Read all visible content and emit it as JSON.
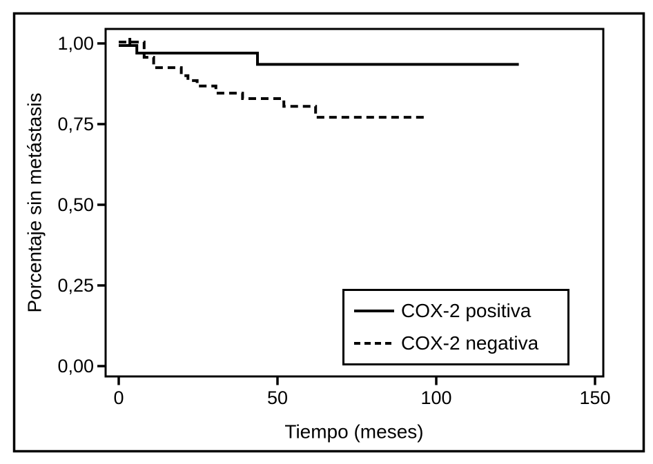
{
  "figure": {
    "background_color": "#ffffff",
    "ink_color": "#000000"
  },
  "chart_data": {
    "type": "line",
    "subtype": "kaplan_meier_step",
    "title": "",
    "xlabel": "Tiempo (meses)",
    "ylabel": "Porcentaje sin metástasis",
    "xlim": [
      0,
      157
    ],
    "ylim": [
      0.0,
      1.07
    ],
    "grid": false,
    "xticks": [
      0,
      50,
      100,
      150
    ],
    "xtick_labels": [
      "0",
      "50",
      "100",
      "150"
    ],
    "yticks_top_to_bottom": [
      1.0,
      0.75,
      0.5,
      0.25,
      0.0
    ],
    "ytick_labels_top_to_bottom": [
      "1,00",
      "0,75",
      "0,50",
      "0,25",
      "0,00"
    ],
    "legend": {
      "position": "lower-right-inside",
      "entries": [
        {
          "label": "COX-2 positiva",
          "line_style": "solid"
        },
        {
          "label": "COX-2 negativa",
          "line_style": "dashed"
        }
      ]
    },
    "series": [
      {
        "name": "COX-2 positiva",
        "line_style": "solid",
        "steps_month_value": [
          [
            0,
            1.0
          ],
          [
            5.7,
            0.97
          ],
          [
            43.7,
            0.935
          ],
          [
            126,
            0.935
          ]
        ],
        "censor_marks_month_value": []
      },
      {
        "name": "COX-2 negativa",
        "line_style": "dashed",
        "steps_month_value": [
          [
            0,
            1.0
          ],
          [
            8,
            0.957
          ],
          [
            11,
            0.925
          ],
          [
            19.7,
            0.9
          ],
          [
            21.8,
            0.885
          ],
          [
            24.7,
            0.868
          ],
          [
            30.6,
            0.846
          ],
          [
            39,
            0.829
          ],
          [
            52,
            0.805
          ],
          [
            62,
            0.771
          ],
          [
            97,
            0.771
          ]
        ],
        "censor_marks_month_value": [
          [
            3.5,
            1.0
          ]
        ]
      }
    ]
  }
}
